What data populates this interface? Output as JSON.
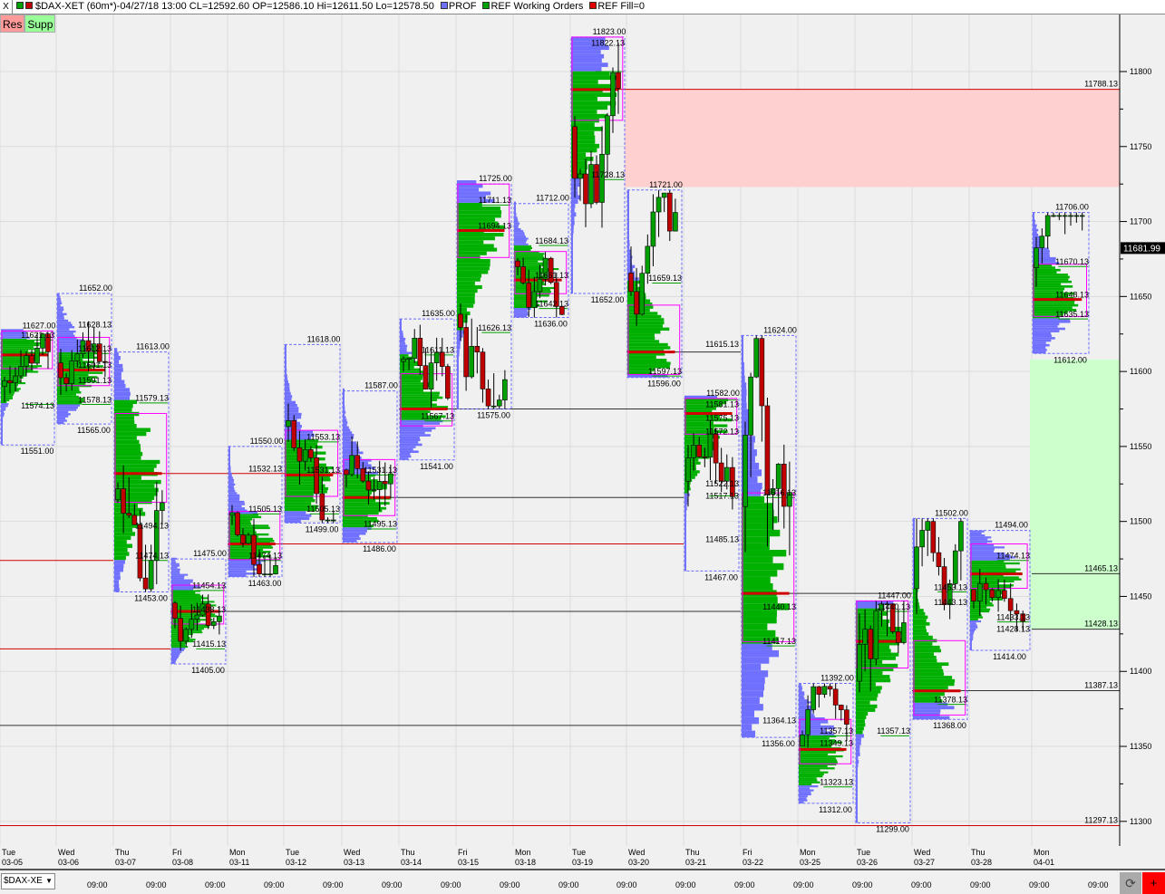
{
  "header": {
    "close_label": "X",
    "title": "$DAX-XET (60m*)-04/27/18 13:00 CL=12592.60 OP=12586.10 Hi=12611.50 Lo=12578.50",
    "legend": [
      {
        "label": "PROF",
        "color": "#7070ff"
      },
      {
        "label": "REF Working Orders",
        "color": "#00a000"
      },
      {
        "label": "REF Fill=0",
        "color": "#e00000"
      }
    ]
  },
  "buttons": {
    "res": "Res",
    "supp": "Supp"
  },
  "bottom": {
    "symbol": "$DAX-XE",
    "refresh_icon": "refresh-icon",
    "plus": "+"
  },
  "chart_data": {
    "type": "market-profile-candlestick",
    "y_ticks": [
      11800,
      11750,
      11700,
      11650,
      11600,
      11550,
      11500,
      11450,
      11400,
      11350,
      11300
    ],
    "ylim": [
      11270,
      11835
    ],
    "last_price": "11681.99",
    "colors": {
      "profile": "#7070ff",
      "value_area": "#00b000",
      "poc": "#d00000",
      "ib": "#ff00ff",
      "up": "#00a000",
      "down": "#c00000",
      "res_zone": "#ffd0d0",
      "sup_zone": "#ccffcc"
    },
    "time_labels": [
      "09:00",
      "09:00",
      "09:00",
      "09:00",
      "09:00",
      "09:00",
      "09:00",
      "09:00",
      "09:00",
      "09:00",
      "09:00",
      "09:00",
      "09:00",
      "09:00",
      "09:00",
      "09:00",
      "09:00",
      "09:00"
    ],
    "zones": [
      {
        "name": "Res",
        "top": 11788,
        "bottom": 11723,
        "from_day": 11
      },
      {
        "name": "Supp",
        "top": 11608,
        "bottom": 11428,
        "from_day": 18
      }
    ],
    "levels": [
      {
        "price": 11788.13,
        "from": 10,
        "color": "#d00000",
        "label": "11788.13"
      },
      {
        "price": 11465.13,
        "from": 18,
        "color": "#333",
        "label": "11465.13"
      },
      {
        "price": 11428.13,
        "from": 18,
        "color": "#333",
        "label": "11428.13"
      },
      {
        "price": 11387.13,
        "from": 16,
        "color": "#333",
        "label": "11387.13"
      },
      {
        "price": 11297.13,
        "from": 0,
        "color": "#d00000",
        "label": "11297.13"
      },
      {
        "price": 11532,
        "from": 2,
        "to": 6,
        "color": "#d00000"
      },
      {
        "price": 11516,
        "from": 6,
        "to": 12,
        "color": "#333"
      },
      {
        "price": 11485,
        "from": 4,
        "to": 12,
        "color": "#d00000"
      },
      {
        "price": 11474,
        "from": 0,
        "to": 2,
        "color": "#d00000"
      },
      {
        "price": 11440,
        "from": 3,
        "to": 13,
        "color": "#333"
      },
      {
        "price": 11415,
        "from": 0,
        "to": 3,
        "color": "#d00000"
      },
      {
        "price": 11364,
        "from": 0,
        "to": 13,
        "color": "#333"
      },
      {
        "price": 11575,
        "from": 7,
        "to": 12,
        "color": "#333"
      },
      {
        "price": 11613,
        "from": 11,
        "to": 13,
        "color": "#333"
      },
      {
        "price": 11452,
        "from": 13,
        "to": 16,
        "color": "#333"
      }
    ],
    "days": [
      {
        "dow": "Tue",
        "date": "03-05",
        "high": 11627,
        "low": 11551,
        "poc": 11611,
        "vah": 11621,
        "val": 11578,
        "labels": [
          "11627.00",
          "11621.13",
          "11574.13",
          "11551.00"
        ]
      },
      {
        "dow": "Wed",
        "date": "03-06",
        "high": 11652,
        "low": 11565,
        "poc": 11601,
        "vah": 11612,
        "val": 11578,
        "labels": [
          "11652.00",
          "11628.13",
          "11612.13",
          "11601.13",
          "11591.13",
          "11578.13",
          "11565.00"
        ]
      },
      {
        "dow": "Thu",
        "date": "03-07",
        "high": 11613,
        "low": 11453,
        "poc": 11532,
        "vah": 11579,
        "val": 11474,
        "labels": [
          "11613.00",
          "11579.13",
          "11494.13",
          "11474.13",
          "11453.00"
        ]
      },
      {
        "dow": "Fri",
        "date": "03-08",
        "high": 11475,
        "low": 11405,
        "poc": 11440,
        "vah": 11454,
        "val": 11415,
        "labels": [
          "11475.00",
          "11454.13",
          "11438.13",
          "11415.13",
          "11405.00"
        ]
      },
      {
        "dow": "Mon",
        "date": "03-11",
        "high": 11550,
        "low": 11463,
        "poc": 11485,
        "vah": 11505,
        "val": 11474,
        "labels": [
          "11550.00",
          "11532.13",
          "11505.13",
          "11474.13",
          "11463.00"
        ]
      },
      {
        "dow": "Tue",
        "date": "03-12",
        "high": 11618,
        "low": 11499,
        "poc": 11531,
        "vah": 11553,
        "val": 11505,
        "labels": [
          "11618.00",
          "11553.13",
          "11531.13",
          "11505.13",
          "11499.00"
        ]
      },
      {
        "dow": "Wed",
        "date": "03-13",
        "high": 11587,
        "low": 11486,
        "poc": 11516,
        "vah": 11531,
        "val": 11495,
        "labels": [
          "11587.00",
          "11531.13",
          "11495.13",
          "11486.00"
        ]
      },
      {
        "dow": "Thu",
        "date": "03-14",
        "high": 11635,
        "low": 11541,
        "poc": 11575,
        "vah": 11611,
        "val": 11567,
        "labels": [
          "11635.00",
          "11611.13",
          "11567.13",
          "11541.00"
        ]
      },
      {
        "dow": "Fri",
        "date": "03-15",
        "high": 11725,
        "low": 11575,
        "poc": 11694,
        "vah": 11711,
        "val": 11626,
        "labels": [
          "11725.00",
          "11711.13",
          "11694.13",
          "11626.13",
          "11575.00"
        ]
      },
      {
        "dow": "Mon",
        "date": "03-18",
        "high": 11712,
        "low": 11636,
        "poc": 11661,
        "vah": 11684,
        "val": 11642,
        "labels": [
          "11712.00",
          "11684.13",
          "11661.13",
          "11642.13",
          "11636.00"
        ]
      },
      {
        "dow": "Tue",
        "date": "03-19",
        "high": 11823,
        "low": 11652,
        "poc": 11788,
        "vah": 11800,
        "val": 11728,
        "labels": [
          "11823.00",
          "11822.13",
          "11728.13",
          "11652.00"
        ]
      },
      {
        "dow": "Wed",
        "date": "03-20",
        "high": 11721,
        "low": 11596,
        "poc": 11613,
        "vah": 11659,
        "val": 11597,
        "labels": [
          "11721.00",
          "11659.13",
          "11597.13",
          "11596.00"
        ]
      },
      {
        "dow": "Thu",
        "date": "03-21",
        "high": 11582,
        "low": 11467,
        "poc": 11572,
        "vah": 11581,
        "val": 11517,
        "labels": [
          "11615.13",
          "11582.00",
          "11581.13",
          "11575.13",
          "11572.13",
          "11522.13",
          "11517.13",
          "11485.13",
          "11467.00"
        ]
      },
      {
        "dow": "Fri",
        "date": "03-22",
        "high": 11624,
        "low": 11356,
        "poc": 11452,
        "vah": 11516,
        "val": 11417,
        "labels": [
          "11624.00",
          "11516.13",
          "11440.13",
          "11417.13",
          "11364.13",
          "11356.00"
        ]
      },
      {
        "dow": "Mon",
        "date": "03-25",
        "high": 11392,
        "low": 11312,
        "poc": 11348,
        "vah": 11357,
        "val": 11323,
        "labels": [
          "11392.00",
          "11357.13",
          "11349.13",
          "11323.13",
          "11312.00"
        ]
      },
      {
        "dow": "Tue",
        "date": "03-26",
        "high": 11447,
        "low": 11299,
        "poc": 11420,
        "vah": 11440,
        "val": 11357,
        "labels": [
          "11447.00",
          "11440.13",
          "11357.13",
          "11299.00"
        ]
      },
      {
        "dow": "Wed",
        "date": "03-27",
        "high": 11502,
        "low": 11368,
        "poc": 11387,
        "vah": 11453,
        "val": 11378,
        "labels": [
          "11502.00",
          "11453.13",
          "11443.13",
          "11378.13",
          "11368.00"
        ]
      },
      {
        "dow": "Thu",
        "date": "03-28",
        "high": 11494,
        "low": 11414,
        "poc": 11465,
        "vah": 11474,
        "val": 11433,
        "labels": [
          "11494.00",
          "11474.13",
          "11433.13",
          "11428.13",
          "11414.00"
        ]
      },
      {
        "dow": "Mon",
        "date": "04-01",
        "high": 11706,
        "low": 11612,
        "poc": 11648,
        "vah": 11670,
        "val": 11635,
        "labels": [
          "11706.00",
          "11670.13",
          "11648.13",
          "11635.13",
          "11612.00"
        ]
      }
    ]
  }
}
